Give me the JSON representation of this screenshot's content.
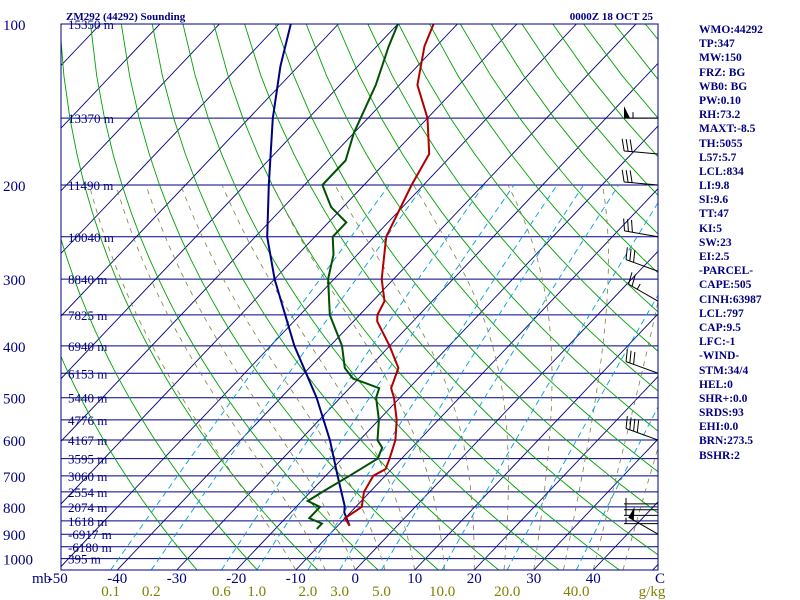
{
  "header": {
    "title": "ZM292 (44292) Sounding",
    "valid_time": "0000Z 18 OCT 25"
  },
  "colors": {
    "frame": "#000080",
    "isobar": "#000080",
    "isotherm": "#000080",
    "dry_adiabat": "#00a000",
    "mixing_ratio": "#00a0d0",
    "moist_adiabat": "#808040",
    "temperature": "#b00000",
    "dewpoint": "#005000",
    "parcel": "#000080",
    "wind_barb": "#000000",
    "text_mixing_ratio": "#808000"
  },
  "stats": [
    "WMO:44292",
    "TP:347",
    "MW:150",
    "FRZ: BG",
    "WB0: BG",
    "PW:0.10",
    "RH:73.2",
    "MAXT:-8.5",
    "TH:5055",
    "L57:5.7",
    "LCL:834",
    "LI:9.8",
    "SI:9.6",
    "TT:47",
    "KI:5",
    "SW:23",
    "EI:2.5",
    "-PARCEL-",
    "CAPE:505",
    "CINH:63987",
    "LCL:797",
    "CAP:9.5",
    "LFC:-1",
    "-WIND-",
    "STM:34/4",
    "HEL:0",
    "SHR+:0.0",
    "SRDS:93",
    "EHI:0.0",
    "BRN:273.5",
    "BSHR:2"
  ],
  "chart_data": {
    "type": "skew-t",
    "xlabel": "C",
    "ylabel": "mb",
    "pressure_ticks": [
      "100",
      "200",
      "300",
      "400",
      "500",
      "600",
      "700",
      "800",
      "900",
      "1000"
    ],
    "temperature_ticks": [
      "-50",
      "-40",
      "-30",
      "-20",
      "-10",
      "0",
      "10",
      "20",
      "30",
      "40"
    ],
    "mixing_ratio_unit": "g/kg",
    "mixing_ratio_ticks": [
      "0.1",
      "0.2",
      "0.6",
      "1.0",
      "2.0",
      "3.0",
      "5.0",
      "10.0",
      "20.0",
      "40.0"
    ],
    "height_labels": [
      {
        "p": 100,
        "label": "15350 m"
      },
      {
        "p": 150,
        "label": "13370 m"
      },
      {
        "p": 200,
        "label": "11490 m"
      },
      {
        "p": 250,
        "label": "10040 m"
      },
      {
        "p": 300,
        "label": "8840 m"
      },
      {
        "p": 350,
        "label": "7825 m"
      },
      {
        "p": 400,
        "label": "6940 m"
      },
      {
        "p": 450,
        "label": "6153 m"
      },
      {
        "p": 500,
        "label": "5440 m"
      },
      {
        "p": 550,
        "label": "4776 m"
      },
      {
        "p": 600,
        "label": "4167 m"
      },
      {
        "p": 650,
        "label": "3595 m"
      },
      {
        "p": 700,
        "label": "3060 m"
      },
      {
        "p": 750,
        "label": "2554 m"
      },
      {
        "p": 800,
        "label": "2074 m"
      },
      {
        "p": 850,
        "label": "1618 m"
      },
      {
        "p": 900,
        "label": "-6917 m"
      },
      {
        "p": 950,
        "label": "-6180 m"
      },
      {
        "p": 1000,
        "label": "395 m"
      }
    ],
    "temperature_profile": [
      {
        "p": 868,
        "t": -8
      },
      {
        "p": 840,
        "t": -10
      },
      {
        "p": 800,
        "t": -9
      },
      {
        "p": 750,
        "t": -11
      },
      {
        "p": 700,
        "t": -12
      },
      {
        "p": 680,
        "t": -11
      },
      {
        "p": 650,
        "t": -12
      },
      {
        "p": 600,
        "t": -14
      },
      {
        "p": 550,
        "t": -17
      },
      {
        "p": 500,
        "t": -21
      },
      {
        "p": 480,
        "t": -23
      },
      {
        "p": 440,
        "t": -25
      },
      {
        "p": 400,
        "t": -30
      },
      {
        "p": 360,
        "t": -36
      },
      {
        "p": 350,
        "t": -37
      },
      {
        "p": 330,
        "t": -38
      },
      {
        "p": 300,
        "t": -42
      },
      {
        "p": 250,
        "t": -48
      },
      {
        "p": 200,
        "t": -52
      },
      {
        "p": 175,
        "t": -54
      },
      {
        "p": 150,
        "t": -60
      },
      {
        "p": 130,
        "t": -67
      },
      {
        "p": 110,
        "t": -72
      },
      {
        "p": 100,
        "t": -74
      }
    ],
    "dewpoint_profile": [
      {
        "p": 880,
        "t": -13
      },
      {
        "p": 860,
        "t": -13
      },
      {
        "p": 840,
        "t": -16
      },
      {
        "p": 800,
        "t": -16
      },
      {
        "p": 780,
        "t": -19
      },
      {
        "p": 750,
        "t": -18
      },
      {
        "p": 700,
        "t": -16
      },
      {
        "p": 650,
        "t": -14
      },
      {
        "p": 620,
        "t": -15
      },
      {
        "p": 600,
        "t": -17
      },
      {
        "p": 550,
        "t": -20
      },
      {
        "p": 500,
        "t": -24
      },
      {
        "p": 480,
        "t": -25
      },
      {
        "p": 460,
        "t": -31
      },
      {
        "p": 440,
        "t": -34
      },
      {
        "p": 400,
        "t": -38
      },
      {
        "p": 350,
        "t": -45
      },
      {
        "p": 300,
        "t": -51
      },
      {
        "p": 270,
        "t": -54
      },
      {
        "p": 250,
        "t": -57
      },
      {
        "p": 235,
        "t": -57
      },
      {
        "p": 220,
        "t": -62
      },
      {
        "p": 200,
        "t": -67
      },
      {
        "p": 180,
        "t": -67
      },
      {
        "p": 160,
        "t": -70
      },
      {
        "p": 130,
        "t": -74
      },
      {
        "p": 110,
        "t": -78
      },
      {
        "p": 100,
        "t": -80
      }
    ],
    "parcel_profile": [
      {
        "p": 868,
        "t": -8
      },
      {
        "p": 820,
        "t": -11
      },
      {
        "p": 797,
        "t": -12
      },
      {
        "p": 700,
        "t": -18
      },
      {
        "p": 600,
        "t": -25
      },
      {
        "p": 500,
        "t": -34
      },
      {
        "p": 400,
        "t": -46
      },
      {
        "p": 300,
        "t": -60
      },
      {
        "p": 250,
        "t": -68
      },
      {
        "p": 200,
        "t": -76
      },
      {
        "p": 150,
        "t": -86
      },
      {
        "p": 120,
        "t": -93
      },
      {
        "p": 100,
        "t": -98
      }
    ],
    "wind_barbs": [
      {
        "p": 900,
        "dir": 300,
        "spd": 50
      },
      {
        "p": 860,
        "dir": 270,
        "spd": 5
      },
      {
        "p": 830,
        "dir": 270,
        "spd": 5
      },
      {
        "p": 810,
        "dir": 270,
        "spd": 5
      },
      {
        "p": 790,
        "dir": 270,
        "spd": 5
      },
      {
        "p": 600,
        "dir": 290,
        "spd": 40
      },
      {
        "p": 450,
        "dir": 290,
        "spd": 30
      },
      {
        "p": 330,
        "dir": 300,
        "spd": 25
      },
      {
        "p": 290,
        "dir": 290,
        "spd": 30
      },
      {
        "p": 250,
        "dir": 280,
        "spd": 30
      },
      {
        "p": 200,
        "dir": 275,
        "spd": 30
      },
      {
        "p": 175,
        "dir": 275,
        "spd": 30
      },
      {
        "p": 150,
        "dir": 270,
        "spd": 55
      }
    ],
    "grid": true
  }
}
